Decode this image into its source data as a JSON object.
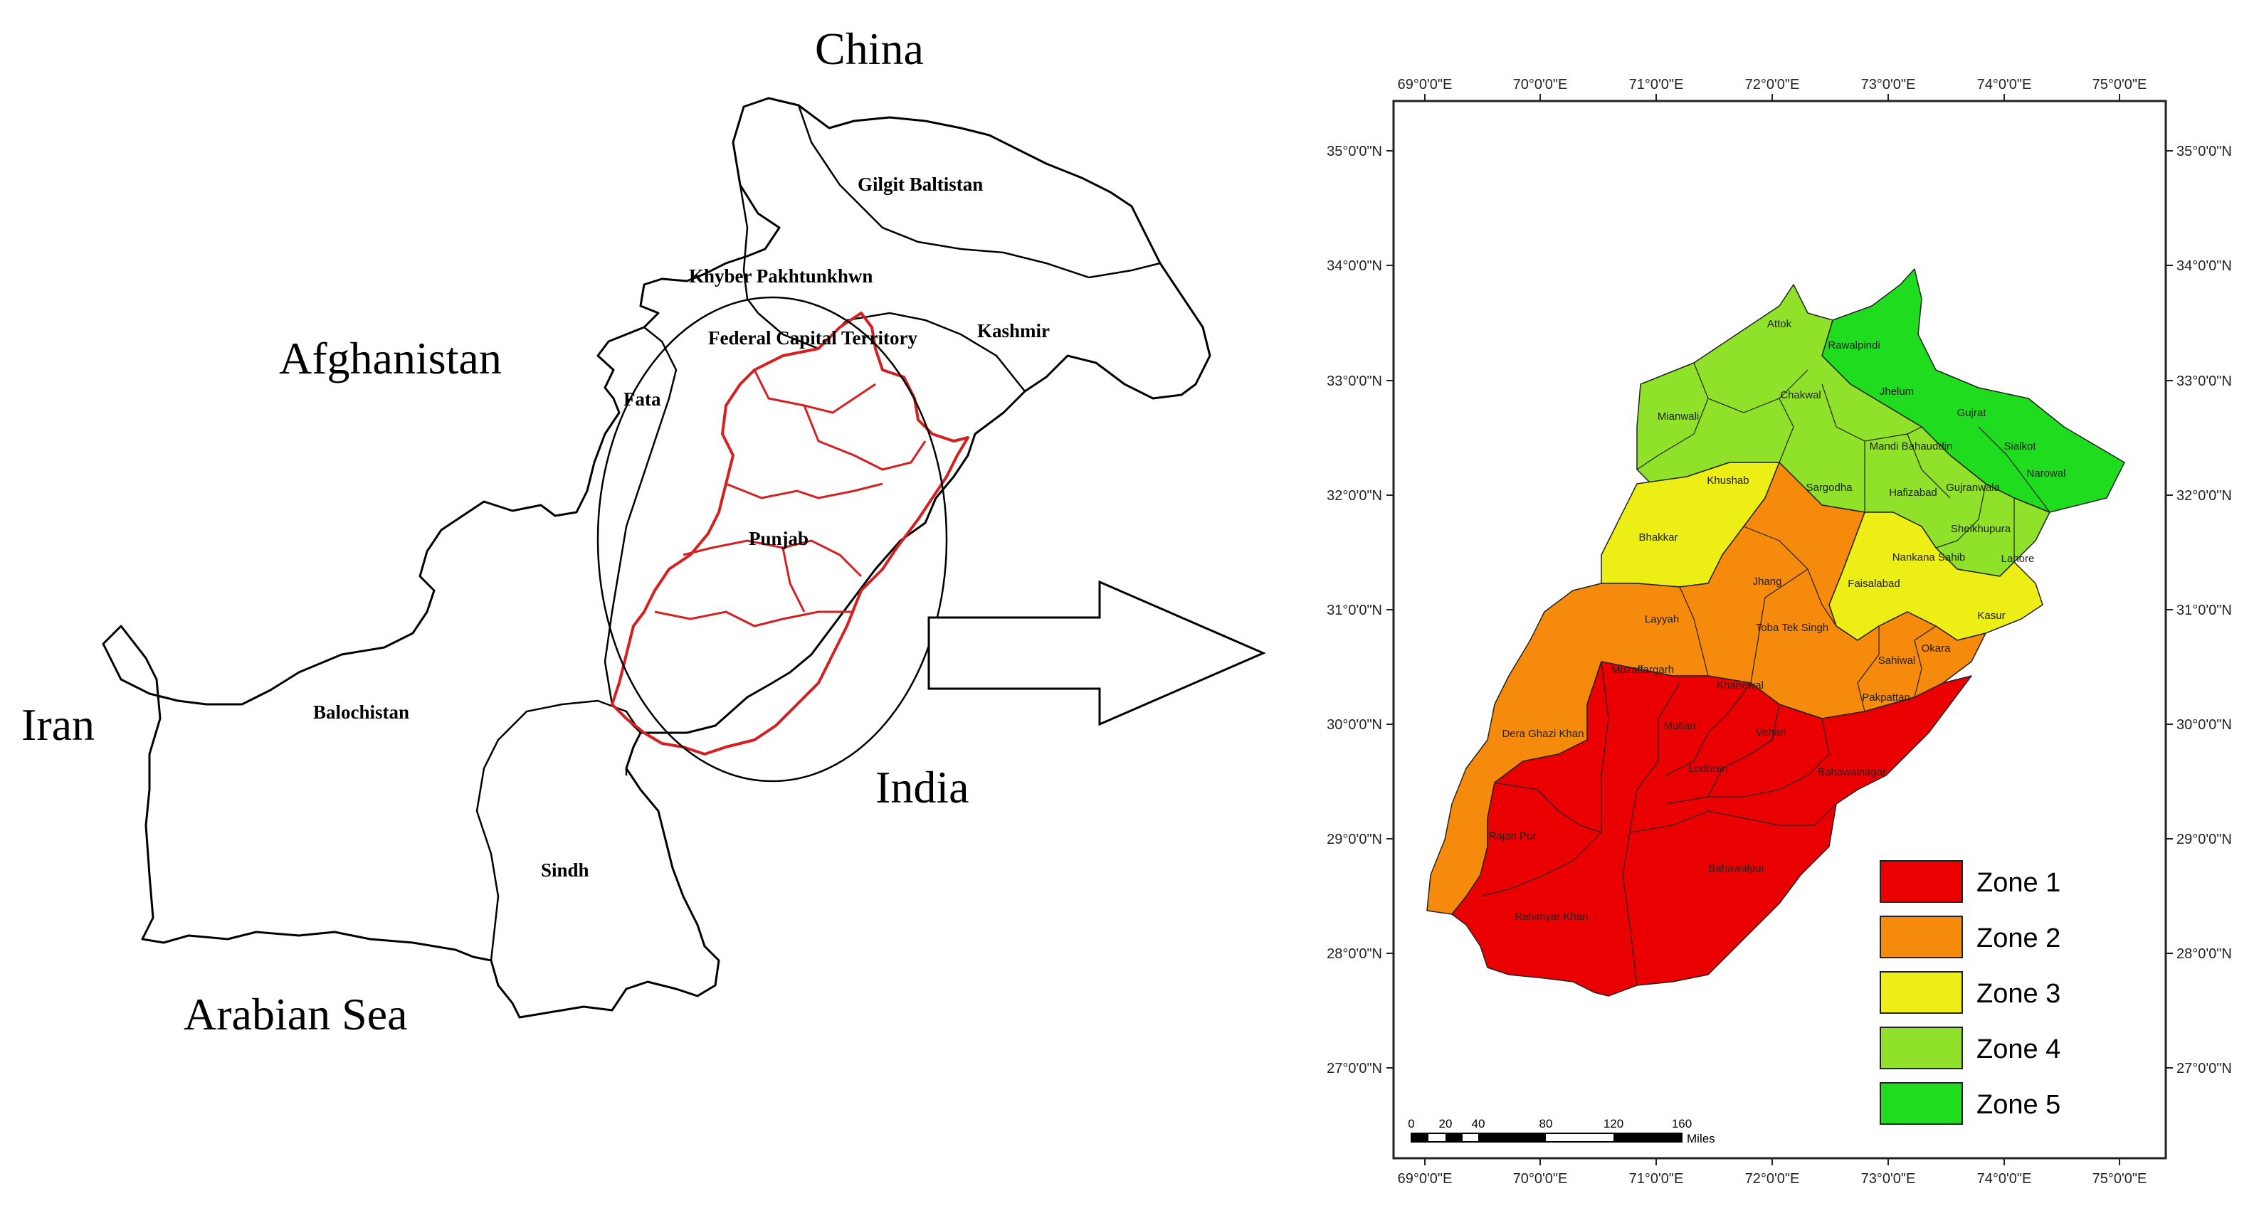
{
  "left_map": {
    "countries": [
      "China",
      "Afghanistan",
      "Iran",
      "India",
      "Arabian Sea"
    ],
    "provinces": [
      "Gilgit Baltistan",
      "Khyber Pakhtunkhwn",
      "Federal Capital Territory",
      "Kashmir",
      "Fata",
      "Punjab",
      "Balochistan",
      "Sindh"
    ]
  },
  "right_map": {
    "lon_ticks": [
      "69°0'0\"E",
      "70°0'0\"E",
      "71°0'0\"E",
      "72°0'0\"E",
      "73°0'0\"E",
      "74°0'0\"E",
      "75°0'0\"E"
    ],
    "lat_ticks": [
      "35°0'0\"N",
      "34°0'0\"N",
      "33°0'0\"N",
      "32°0'0\"N",
      "31°0'0\"N",
      "30°0'0\"N",
      "29°0'0\"N",
      "28°0'0\"N",
      "27°0'0\"N"
    ],
    "districts": [
      {
        "name": "Attok",
        "zone": 4
      },
      {
        "name": "Rawalpindi",
        "zone": 5
      },
      {
        "name": "Chakwal",
        "zone": 4
      },
      {
        "name": "Jhelum",
        "zone": 5
      },
      {
        "name": "Gujrat",
        "zone": 5
      },
      {
        "name": "Mianwali",
        "zone": 4
      },
      {
        "name": "Mandi Bahauddin",
        "zone": 4
      },
      {
        "name": "Sialkot",
        "zone": 5
      },
      {
        "name": "Narowal",
        "zone": 5
      },
      {
        "name": "Khushab",
        "zone": 3
      },
      {
        "name": "Sargodha",
        "zone": 4
      },
      {
        "name": "Hafizabad",
        "zone": 4
      },
      {
        "name": "Gujranwala",
        "zone": 4
      },
      {
        "name": "Sheikhupura",
        "zone": 4
      },
      {
        "name": "Bhakkar",
        "zone": 3
      },
      {
        "name": "Nankana Sahib",
        "zone": 3
      },
      {
        "name": "Lahore",
        "zone": 4
      },
      {
        "name": "Jhang",
        "zone": 2
      },
      {
        "name": "Faisalabad",
        "zone": 3
      },
      {
        "name": "Layyah",
        "zone": 2
      },
      {
        "name": "Toba Tek Singh",
        "zone": 2
      },
      {
        "name": "Kasur",
        "zone": 3
      },
      {
        "name": "Muzaffargarh",
        "zone": 1
      },
      {
        "name": "Khanewal",
        "zone": 1
      },
      {
        "name": "Sahiwal",
        "zone": 2
      },
      {
        "name": "Okara",
        "zone": 2
      },
      {
        "name": "Pakpattan",
        "zone": 2
      },
      {
        "name": "Multan",
        "zone": 1
      },
      {
        "name": "Vehari",
        "zone": 1
      },
      {
        "name": "Dera Ghazi Khan",
        "zone": 2
      },
      {
        "name": "Lodhran",
        "zone": 1
      },
      {
        "name": "Bahawalnagar",
        "zone": 1
      },
      {
        "name": "Rajan Pur",
        "zone": 1
      },
      {
        "name": "Bahawalpur",
        "zone": 1
      },
      {
        "name": "Rahimyar Khan",
        "zone": 1
      }
    ],
    "legend": [
      {
        "label": "Zone 1",
        "color": "#ea0000"
      },
      {
        "label": "Zone 2",
        "color": "#f68a0c"
      },
      {
        "label": "Zone 3",
        "color": "#ecee16"
      },
      {
        "label": "Zone 4",
        "color": "#8fe12a"
      },
      {
        "label": "Zone 5",
        "color": "#1fdc1f"
      }
    ],
    "scale_bar": {
      "ticks": [
        "0",
        "20",
        "40",
        "80",
        "120",
        "160"
      ],
      "unit": "Miles"
    },
    "colors": {
      "outline": "#000000",
      "punjab_outline": "#d42020",
      "background": "#ffffff"
    }
  }
}
